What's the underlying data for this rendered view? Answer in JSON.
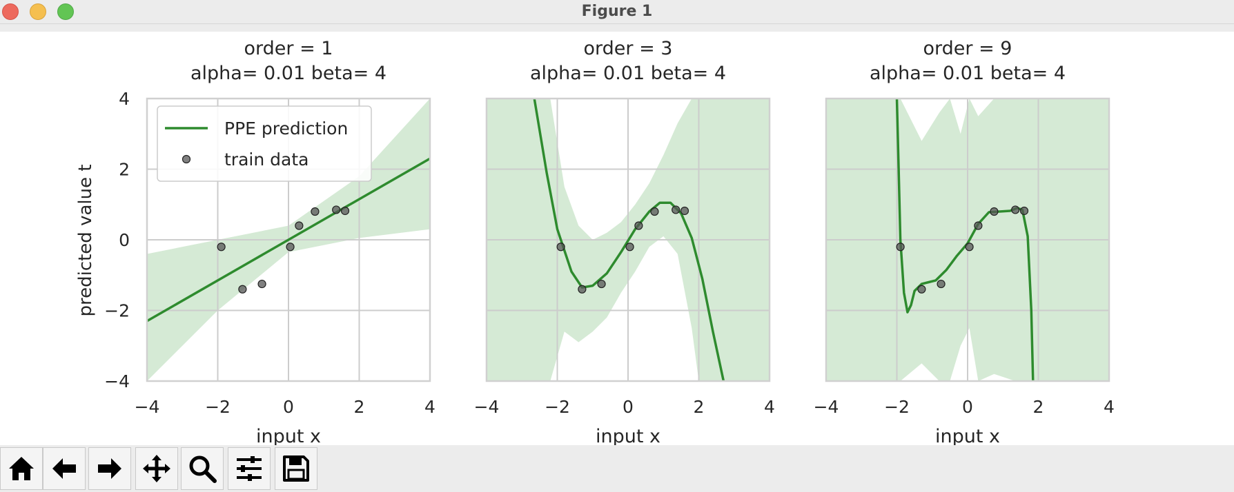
{
  "window": {
    "title": "Figure 1"
  },
  "toolbar": {
    "buttons": [
      {
        "name": "home-icon"
      },
      {
        "name": "back-arrow-icon"
      },
      {
        "name": "forward-arrow-icon"
      },
      {
        "name": "pan-icon"
      },
      {
        "name": "zoom-icon"
      },
      {
        "name": "configure-subplots-icon"
      },
      {
        "name": "save-icon"
      }
    ]
  },
  "figure": {
    "ylabel": "predicted value t",
    "legend": {
      "line_label": "PPE prediction",
      "points_label": "train data"
    }
  },
  "colors": {
    "line": "#2e8b2e",
    "band": "#d5ead5",
    "points": "#555555",
    "grid": "#cccccc"
  },
  "chart_data": [
    {
      "type": "line",
      "title": "order = 1\nalpha= 0.01  beta= 4",
      "title_line1": "order = 1",
      "title_line2": "alpha= 0.01  beta= 4",
      "xlabel": "input x",
      "ylabel": "predicted value t",
      "xlim": [
        -4,
        4
      ],
      "ylim": [
        -4,
        4
      ],
      "xticks": [
        "−4",
        "−2",
        "0",
        "2",
        "4"
      ],
      "yticks": [
        "−4",
        "−2",
        "0",
        "2",
        "4"
      ],
      "grid": true,
      "legend": "top-left",
      "series": [
        {
          "name": "PPE prediction",
          "x": [
            -4,
            4
          ],
          "y": [
            -2.3,
            2.3
          ]
        },
        {
          "name": "train data",
          "x": [
            -1.9,
            -1.3,
            -0.75,
            0.05,
            0.3,
            0.75,
            1.35,
            1.6
          ],
          "y": [
            -0.2,
            -1.4,
            -1.25,
            -0.2,
            0.4,
            0.8,
            0.85,
            0.82
          ]
        }
      ],
      "band": {
        "x": [
          -4,
          -2,
          0,
          2,
          4
        ],
        "upper": [
          -0.4,
          0.0,
          0.4,
          1.8,
          4.0
        ],
        "lower": [
          -4.0,
          -2.0,
          -0.35,
          0.05,
          0.3
        ]
      }
    },
    {
      "type": "line",
      "title": "order = 3\nalpha= 0.01  beta= 4",
      "title_line1": "order = 3",
      "title_line2": "alpha= 0.01  beta= 4",
      "xlabel": "input x",
      "xlim": [
        -4,
        4
      ],
      "ylim": [
        -4,
        4
      ],
      "xticks": [
        "−4",
        "−2",
        "0",
        "2",
        "4"
      ],
      "grid": true,
      "series": [
        {
          "name": "PPE prediction",
          "x": [
            -2.65,
            -2.3,
            -2.0,
            -1.6,
            -1.3,
            -1.0,
            -0.6,
            -0.2,
            0.2,
            0.6,
            0.9,
            1.2,
            1.5,
            1.8,
            2.1,
            2.4,
            2.7
          ],
          "y": [
            4.0,
            1.9,
            0.3,
            -0.9,
            -1.35,
            -1.3,
            -0.95,
            -0.35,
            0.3,
            0.8,
            1.05,
            1.05,
            0.75,
            0.05,
            -1.1,
            -2.6,
            -4.0
          ]
        },
        {
          "name": "train data",
          "x": [
            -1.9,
            -1.3,
            -0.75,
            0.05,
            0.3,
            0.75,
            1.35,
            1.6
          ],
          "y": [
            -0.2,
            -1.4,
            -1.25,
            -0.2,
            0.4,
            0.8,
            0.85,
            0.82
          ]
        }
      ],
      "band": {
        "x": [
          -4,
          -2.7,
          -2.2,
          -1.8,
          -1.4,
          -1.0,
          -0.6,
          -0.2,
          0.2,
          0.6,
          1.0,
          1.4,
          1.8,
          2.0,
          4
        ],
        "upper": [
          4.0,
          4.0,
          4.0,
          1.5,
          0.4,
          0.0,
          0.2,
          0.5,
          1.0,
          1.6,
          2.4,
          3.3,
          4.0,
          4.0,
          4.0
        ],
        "lower": [
          -4.0,
          -4.0,
          -4.0,
          -2.6,
          -2.9,
          -2.6,
          -2.2,
          -1.5,
          -0.9,
          -0.2,
          0.1,
          -0.4,
          -2.5,
          -4.0,
          -4.0
        ]
      }
    },
    {
      "type": "line",
      "title": "order = 9\nalpha= 0.01  beta= 4",
      "title_line1": "order = 9",
      "title_line2": "alpha= 0.01  beta= 4",
      "xlabel": "input x",
      "xlim": [
        -4,
        4
      ],
      "ylim": [
        -4,
        4
      ],
      "xticks": [
        "−4",
        "−2",
        "0",
        "2",
        "4"
      ],
      "grid": true,
      "series": [
        {
          "name": "PPE prediction",
          "x": [
            -2.0,
            -1.95,
            -1.9,
            -1.8,
            -1.7,
            -1.6,
            -1.5,
            -1.3,
            -1.1,
            -0.9,
            -0.6,
            -0.3,
            0.0,
            0.3,
            0.6,
            0.9,
            1.2,
            1.4,
            1.55,
            1.7,
            1.8,
            1.85
          ],
          "y": [
            4.0,
            2.0,
            0.0,
            -1.5,
            -2.05,
            -1.85,
            -1.45,
            -1.25,
            -1.2,
            -1.15,
            -0.85,
            -0.45,
            -0.1,
            0.45,
            0.78,
            0.8,
            0.82,
            0.9,
            0.85,
            0.1,
            -2.0,
            -4.0
          ]
        },
        {
          "name": "train data",
          "x": [
            -1.9,
            -1.3,
            -0.75,
            0.05,
            0.3,
            0.75,
            1.35,
            1.6
          ],
          "y": [
            -0.2,
            -1.4,
            -1.25,
            -0.2,
            0.4,
            0.8,
            0.85,
            0.82
          ]
        }
      ],
      "band": {
        "x": [
          -4,
          -1.9,
          -1.3,
          -0.8,
          -0.5,
          -0.2,
          0.05,
          0.3,
          0.75,
          1.35,
          1.6,
          1.85,
          4
        ],
        "upper": [
          4.0,
          4.0,
          2.8,
          3.6,
          4.0,
          3.0,
          4.0,
          3.5,
          4.0,
          4.0,
          4.0,
          4.0,
          4.0
        ],
        "lower": [
          -4.0,
          -4.0,
          -3.5,
          -4.0,
          -4.0,
          -3.0,
          -2.5,
          -4.0,
          -3.8,
          -4.0,
          -4.0,
          -4.0,
          -4.0
        ]
      }
    }
  ]
}
